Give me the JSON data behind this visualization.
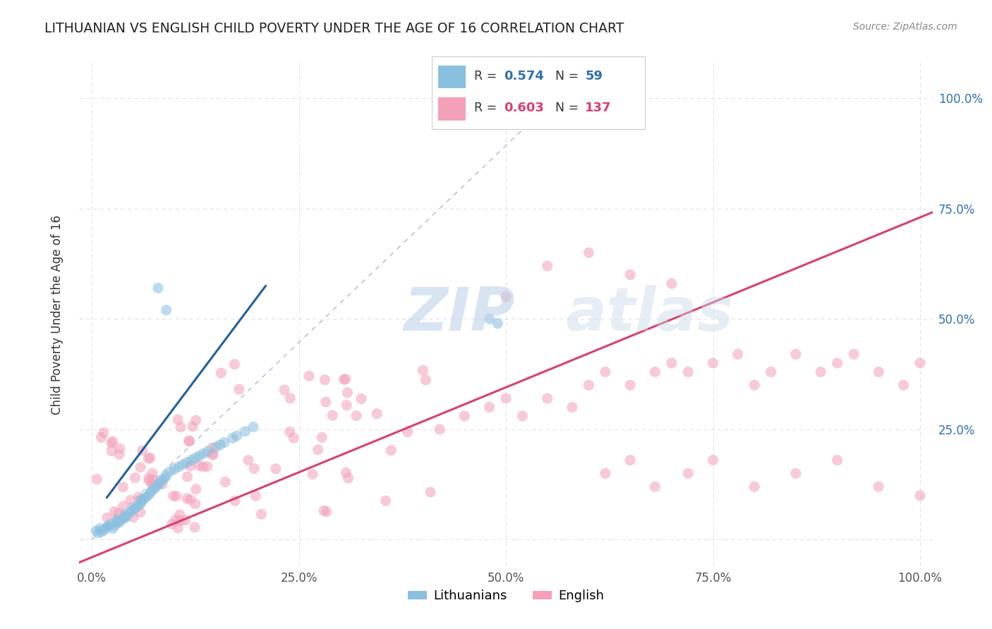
{
  "title": "LITHUANIAN VS ENGLISH CHILD POVERTY UNDER THE AGE OF 16 CORRELATION CHART",
  "source": "Source: ZipAtlas.com",
  "ylabel": "Child Poverty Under the Age of 16",
  "blue_color": "#89bfdf",
  "pink_color": "#f4a0b8",
  "blue_line_color": "#2060a0",
  "pink_line_color": "#d84070",
  "diag_color": "#aabbd0",
  "legend_R_blue": "0.574",
  "legend_N_blue": "59",
  "legend_R_pink": "0.603",
  "legend_N_pink": "137",
  "blue_text_color": "#3070b0",
  "pink_text_color": "#d84070",
  "watermark_color": "#c8d8ec",
  "bg_color": "#ffffff",
  "grid_color": "#e0e0e8",
  "tick_color": "#555555",
  "title_color": "#222222",
  "source_color": "#888888"
}
